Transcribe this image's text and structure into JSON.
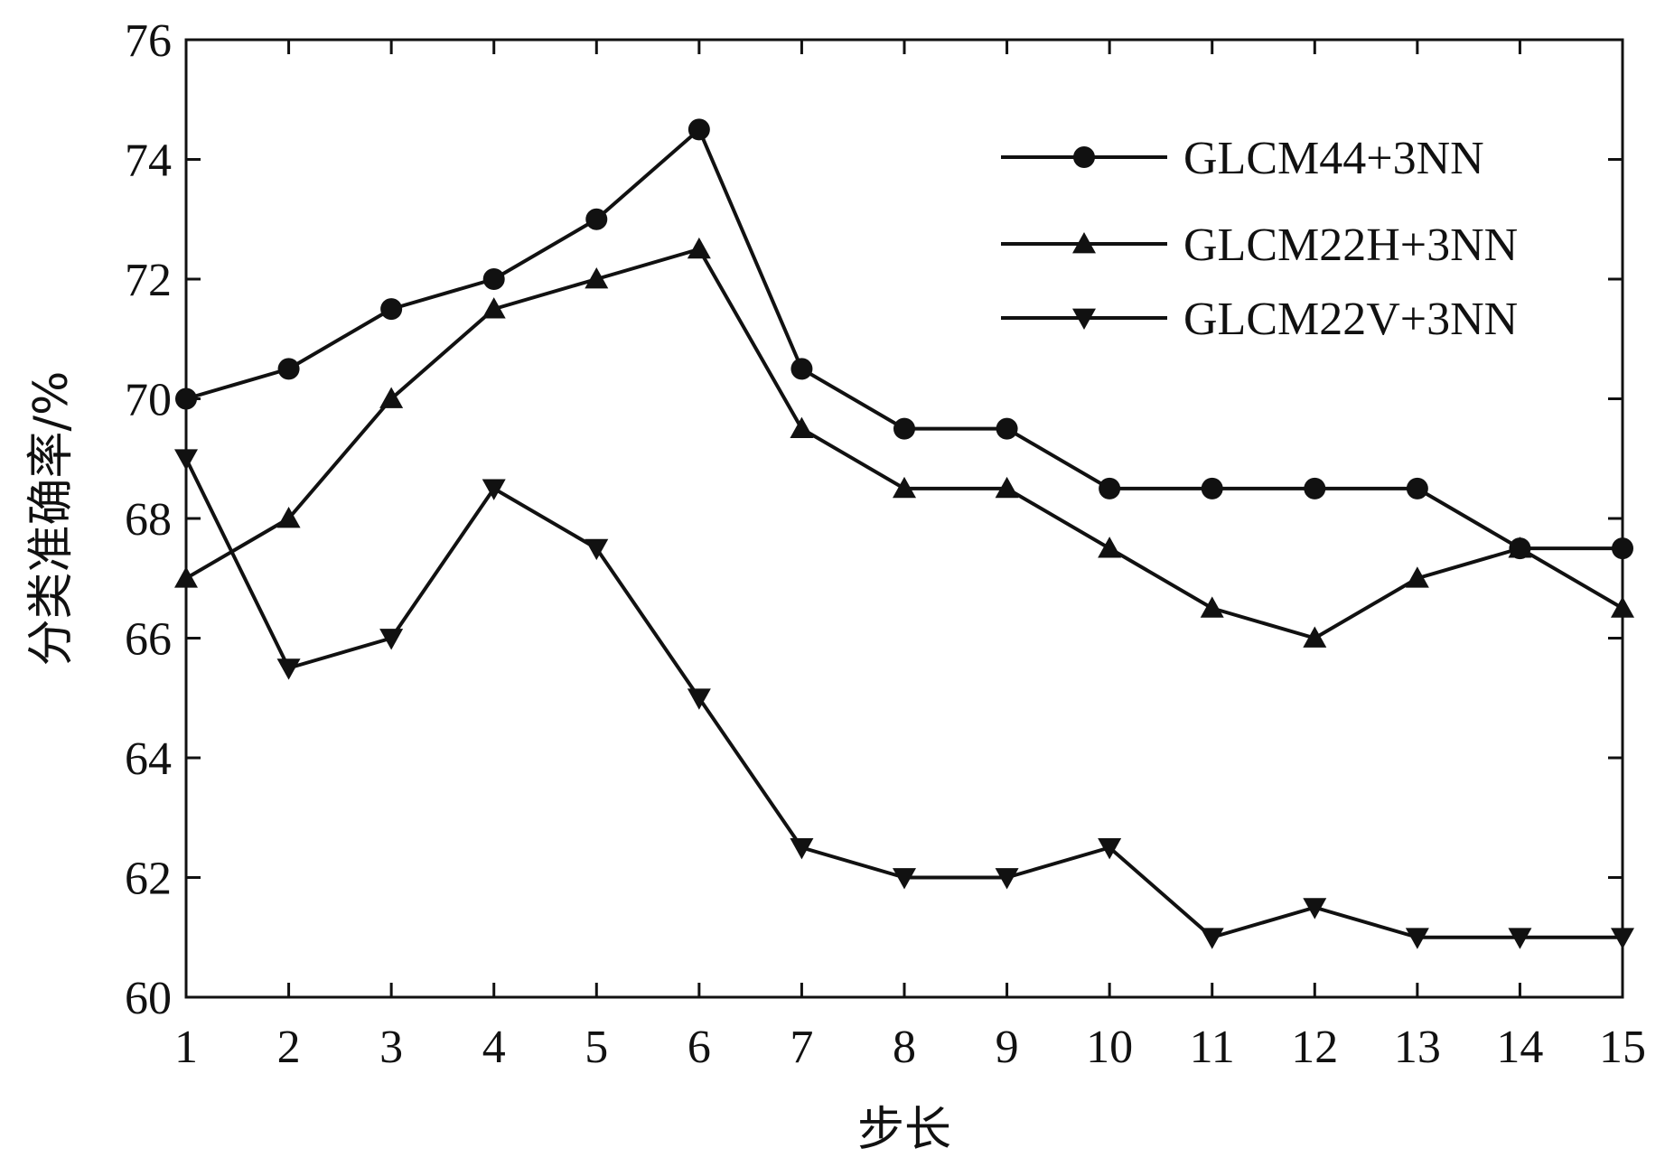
{
  "chart_data": {
    "type": "line",
    "title": "",
    "xlabel": "步长",
    "ylabel": "分类准确率/%",
    "xlim": [
      1,
      15
    ],
    "ylim": [
      60,
      76
    ],
    "x_ticks": [
      1,
      2,
      3,
      4,
      5,
      6,
      7,
      8,
      9,
      10,
      11,
      12,
      13,
      14,
      15
    ],
    "y_ticks": [
      60,
      62,
      64,
      66,
      68,
      70,
      72,
      74,
      76
    ],
    "x": [
      1,
      2,
      3,
      4,
      5,
      6,
      7,
      8,
      9,
      10,
      11,
      12,
      13,
      14,
      15
    ],
    "grid": false,
    "legend_position": "top-right",
    "series": [
      {
        "name": "GLCM44+3NN",
        "marker": "circle",
        "color": "#111111",
        "values": [
          70,
          70.5,
          71.5,
          72,
          73,
          74.5,
          70.5,
          69.5,
          69.5,
          68.5,
          68.5,
          68.5,
          68.5,
          67.5,
          67.5
        ]
      },
      {
        "name": "GLCM22H+3NN",
        "marker": "triangle-up",
        "color": "#111111",
        "values": [
          67,
          68,
          70,
          71.5,
          72,
          72.5,
          69.5,
          68.5,
          68.5,
          67.5,
          66.5,
          66,
          67,
          67.5,
          66.5
        ]
      },
      {
        "name": "GLCM22V+3NN",
        "marker": "triangle-down",
        "color": "#111111",
        "values": [
          69,
          65.5,
          66,
          68.5,
          67.5,
          65,
          62.5,
          62,
          62,
          62.5,
          61,
          61.5,
          61,
          61,
          61
        ]
      }
    ]
  }
}
